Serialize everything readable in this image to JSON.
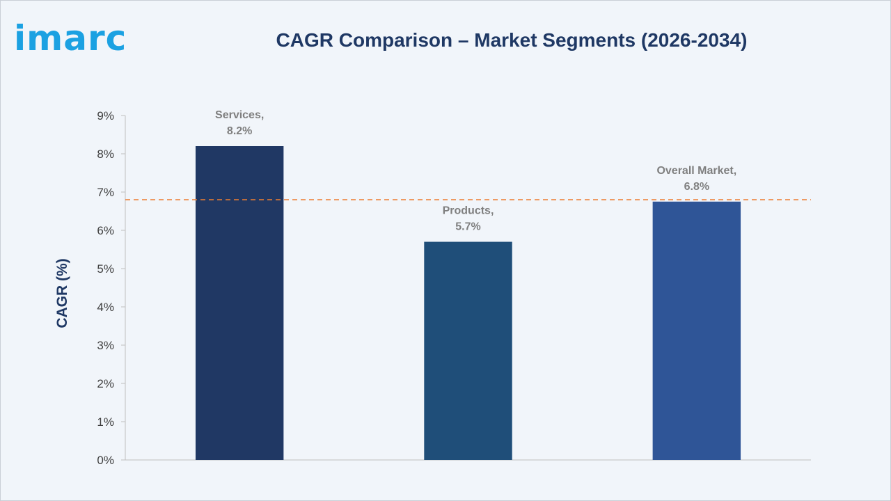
{
  "logo": {
    "text": "imarc",
    "color": "#1ba1e2"
  },
  "chart_data": {
    "type": "bar",
    "title": "CAGR Comparison – Market Segments (2026-2034)",
    "xlabel": "",
    "ylabel": "CAGR (%)",
    "ylim": [
      0,
      9
    ],
    "yticks": [
      0,
      1,
      2,
      3,
      4,
      5,
      6,
      7,
      8,
      9
    ],
    "ytick_labels": [
      "0%",
      "1%",
      "2%",
      "3%",
      "4%",
      "5%",
      "6%",
      "7%",
      "8%",
      "9%"
    ],
    "categories": [
      "Services",
      "Products",
      "Overall Market"
    ],
    "values": [
      8.2,
      5.7,
      6.75
    ],
    "data_labels": [
      [
        "Services,",
        "8.2%"
      ],
      [
        "Products,",
        "5.7%"
      ],
      [
        "Overall Market,",
        "6.8%"
      ]
    ],
    "bar_colors": [
      "#203864",
      "#1f4e79",
      "#2f5597"
    ],
    "reference_line": {
      "value": 6.8,
      "color": "#ed7d31",
      "style": "dashed"
    },
    "grid": false,
    "legend": "none"
  }
}
